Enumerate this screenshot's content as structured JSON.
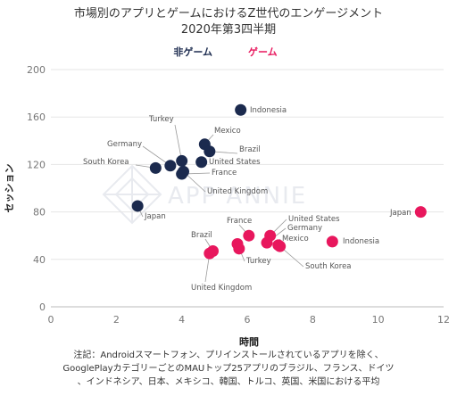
{
  "chart_data": {
    "type": "scatter",
    "title": "市場別のアプリとゲームにおけるZ世代のエンゲージメント",
    "subtitle": "2020年第3四半期",
    "xlabel": "時間",
    "ylabel": "セッション",
    "xlim": [
      0,
      12
    ],
    "ylim": [
      0,
      200
    ],
    "xticks": [
      "0",
      "2",
      "4",
      "6",
      "8",
      "10",
      "12"
    ],
    "yticks": [
      "0",
      "40",
      "80",
      "120",
      "160",
      "200"
    ],
    "grid": "horizontal",
    "legend_position": "top-center",
    "watermark": "APP ANNIE",
    "series": [
      {
        "name": "非ゲーム",
        "color": "#1b2a4e",
        "points": [
          {
            "label": "Indonesia",
            "x": 5.8,
            "y": 166
          },
          {
            "label": "Mexico",
            "x": 4.7,
            "y": 137
          },
          {
            "label": "Brazil",
            "x": 4.85,
            "y": 131
          },
          {
            "label": "Turkey",
            "x": 4.0,
            "y": 123
          },
          {
            "label": "Germany",
            "x": 3.65,
            "y": 119
          },
          {
            "label": "South Korea",
            "x": 3.2,
            "y": 117
          },
          {
            "label": "United States",
            "x": 4.6,
            "y": 122
          },
          {
            "label": "France",
            "x": 4.0,
            "y": 112
          },
          {
            "label": "United Kingdom",
            "x": 4.05,
            "y": 114
          },
          {
            "label": "Japan",
            "x": 2.65,
            "y": 85
          }
        ]
      },
      {
        "name": "ゲーム",
        "color": "#e8175d",
        "points": [
          {
            "label": "Japan",
            "x": 11.3,
            "y": 80
          },
          {
            "label": "Indonesia",
            "x": 8.6,
            "y": 55
          },
          {
            "label": "France",
            "x": 6.05,
            "y": 60
          },
          {
            "label": "United States",
            "x": 6.7,
            "y": 60
          },
          {
            "label": "Germany",
            "x": 6.6,
            "y": 54
          },
          {
            "label": "Mexico",
            "x": 6.95,
            "y": 52
          },
          {
            "label": "South Korea",
            "x": 7.0,
            "y": 51
          },
          {
            "label": "Brazil",
            "x": 4.95,
            "y": 47
          },
          {
            "label": "United Kingdom",
            "x": 4.85,
            "y": 45
          },
          {
            "label": "Turkey",
            "x": 5.7,
            "y": 53
          },
          {
            "label": "Turkey-2",
            "x": 5.75,
            "y": 49
          }
        ]
      }
    ]
  },
  "note": [
    "注記：Androidスマートフォン、プリインストールされているアプリを除く、",
    "GooglePlayカテゴリーごとのMAUトップ25アプリのブラジル、フランス、ドイツ",
    "、インドネシア、日本、メキシコ、韓国、トルコ、英国、米国における平均"
  ]
}
